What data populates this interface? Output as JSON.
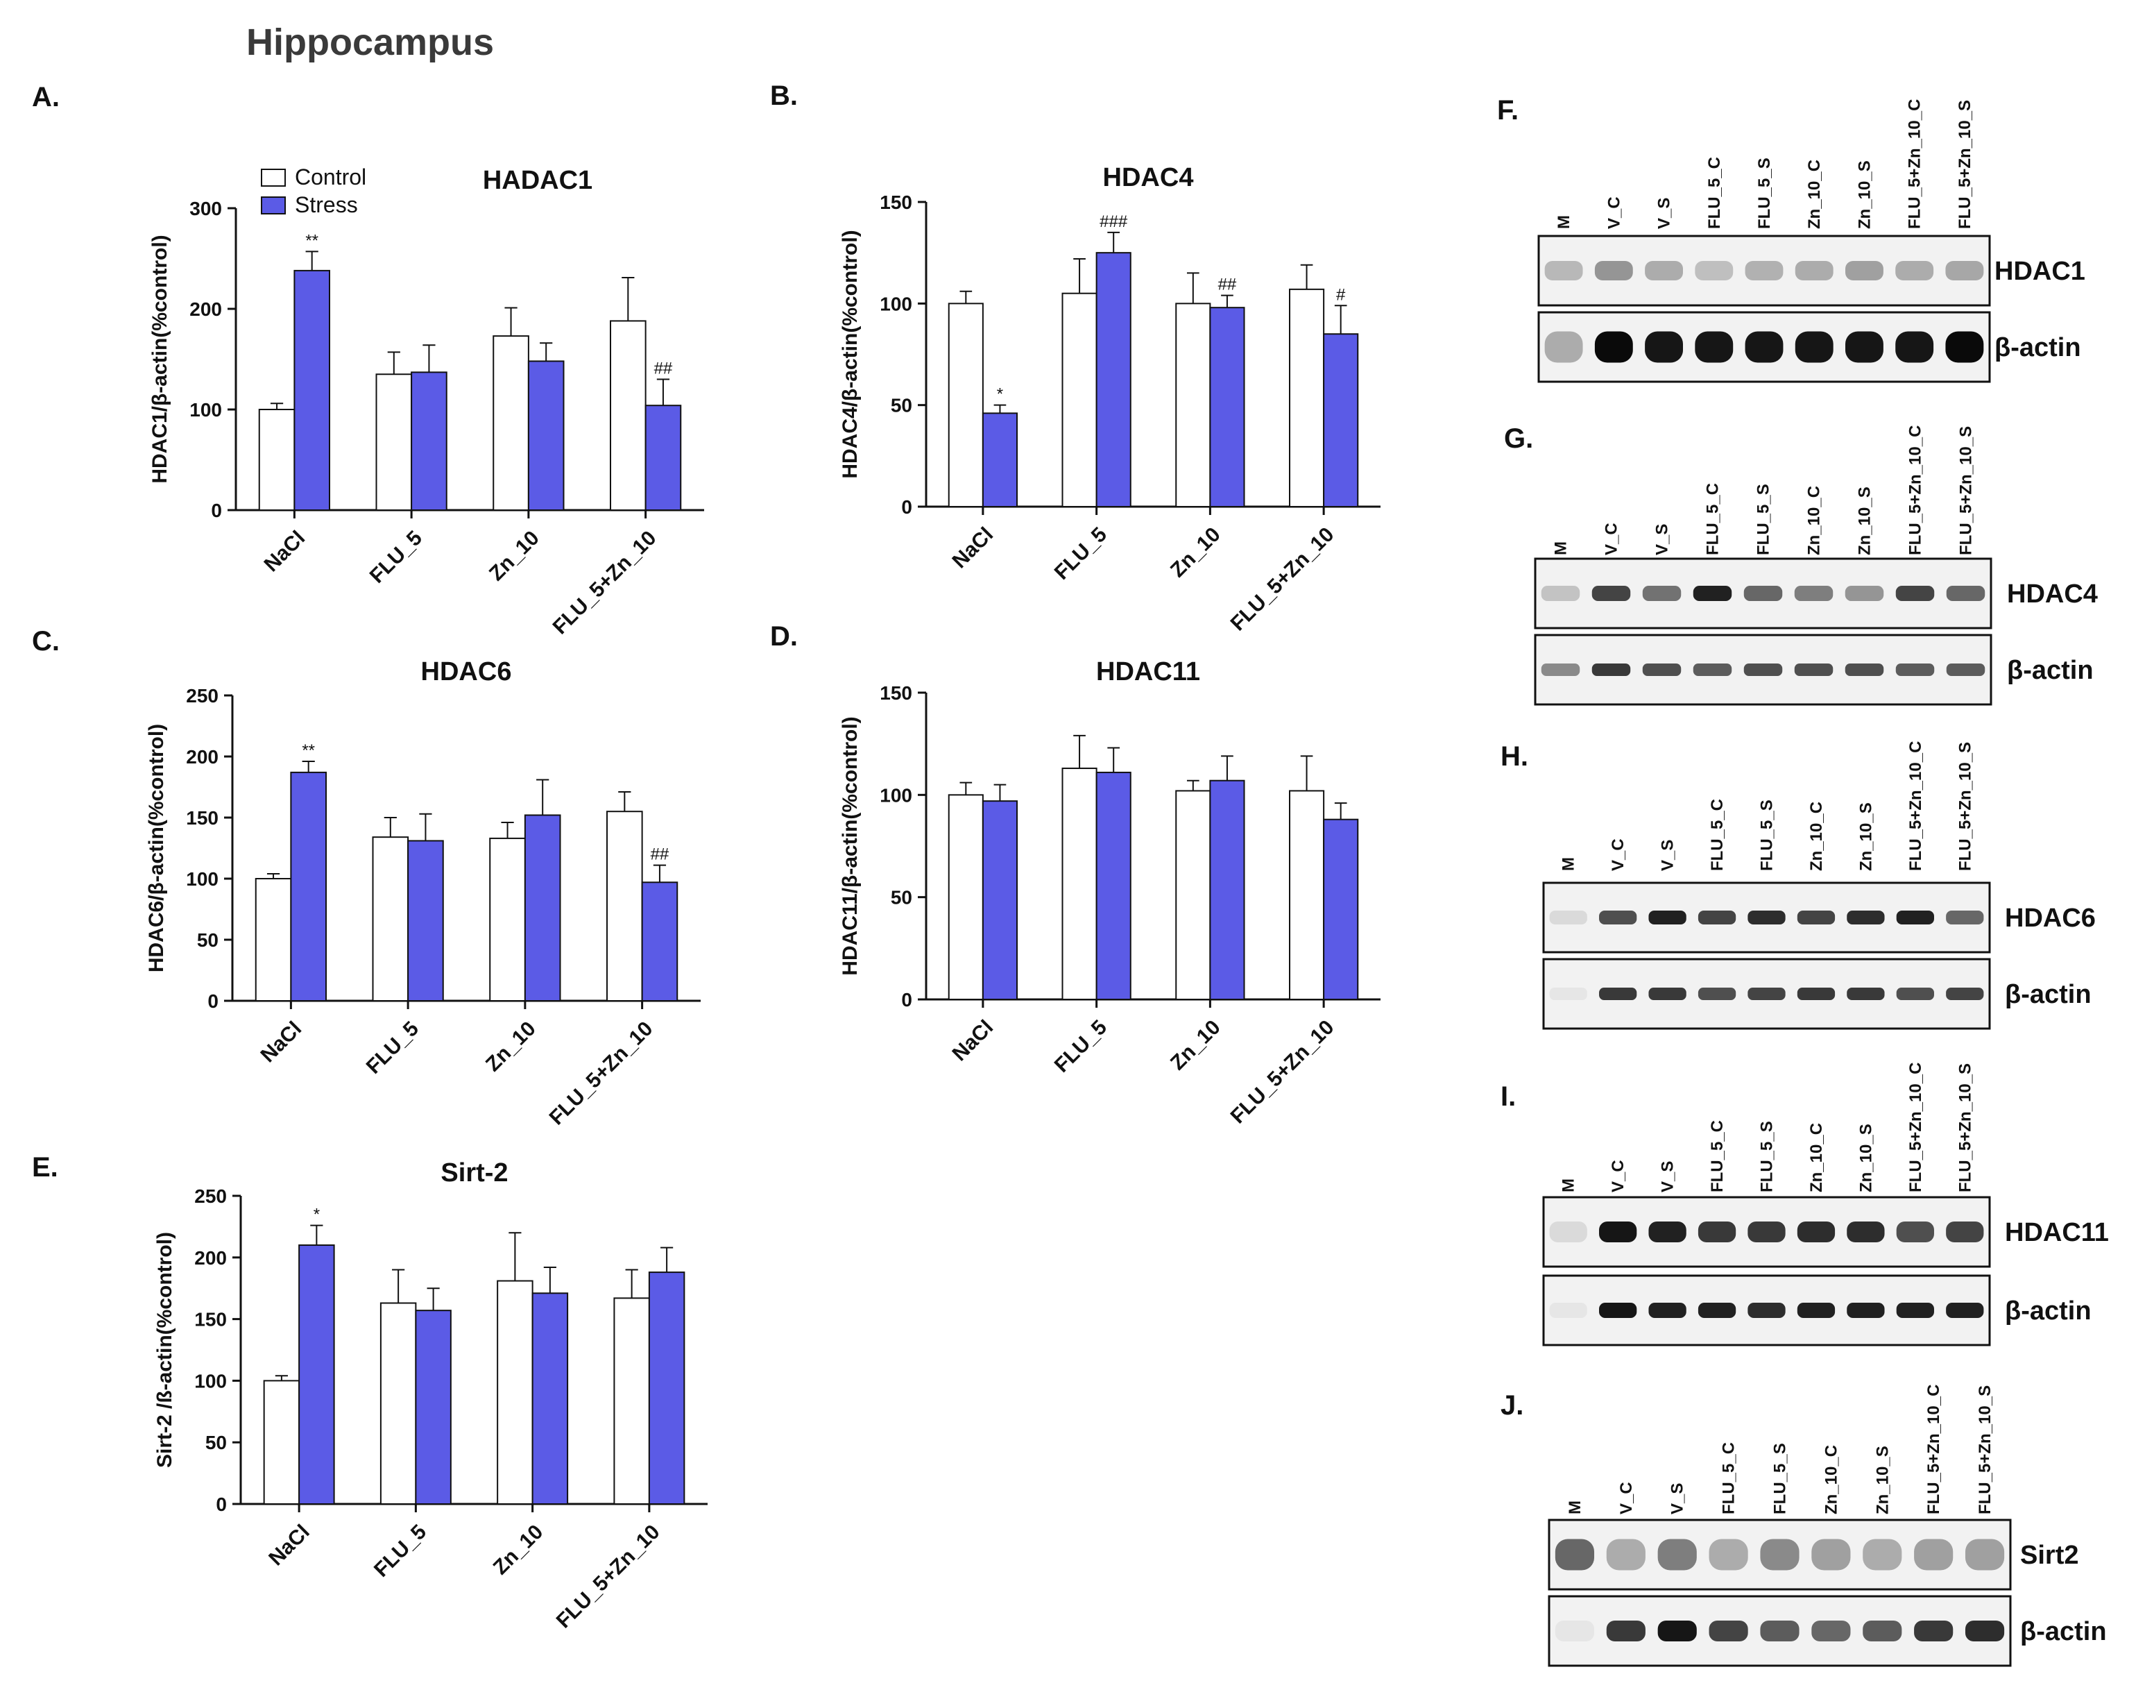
{
  "figure": {
    "title": "Hippocampus",
    "panel_letters": [
      "A.",
      "B.",
      "C.",
      "D.",
      "E.",
      "F.",
      "G.",
      "H.",
      "I.",
      "J."
    ]
  },
  "colors": {
    "control": "#ffffff",
    "stress": "#5b5be6",
    "axis": "#111111",
    "blot_dark": "#0a0a0a"
  },
  "chart_data": [
    {
      "panel": "A.",
      "type": "bar",
      "title": "HADAC1",
      "ylabel": "HDAC1/β-actin(%control)",
      "ylim": [
        0,
        300
      ],
      "yticks": [
        0,
        100,
        200,
        300
      ],
      "categories": [
        "NaCl",
        "FLU_5",
        "Zn_10",
        "FLU_5+Zn_10"
      ],
      "series": [
        {
          "name": "Control",
          "values": [
            100,
            135,
            173,
            188
          ],
          "errors": [
            6,
            22,
            28,
            43
          ]
        },
        {
          "name": "Stress",
          "values": [
            238,
            137,
            148,
            104
          ],
          "errors": [
            19,
            27,
            18,
            26
          ]
        }
      ],
      "annotations": [
        {
          "category": 0,
          "series": 1,
          "text": "**"
        },
        {
          "category": 3,
          "series": 1,
          "text": "##"
        }
      ],
      "legend": {
        "position": "top-left",
        "entries": [
          "Control",
          "Stress"
        ]
      }
    },
    {
      "panel": "B.",
      "type": "bar",
      "title": "HDAC4",
      "ylabel": "HDAC4/β-actin(%control)",
      "ylim": [
        0,
        150
      ],
      "yticks": [
        0,
        50,
        100,
        150
      ],
      "categories": [
        "NaCl",
        "FLU_5",
        "Zn_10",
        "FLU_5+Zn_10"
      ],
      "series": [
        {
          "name": "Control",
          "values": [
            100,
            105,
            100,
            107
          ],
          "errors": [
            6,
            17,
            15,
            12
          ]
        },
        {
          "name": "Stress",
          "values": [
            46,
            125,
            98,
            85
          ],
          "errors": [
            4,
            10,
            6,
            14
          ]
        }
      ],
      "annotations": [
        {
          "category": 0,
          "series": 1,
          "text": "*"
        },
        {
          "category": 1,
          "series": 1,
          "text": "###"
        },
        {
          "category": 2,
          "series": 1,
          "text": "##"
        },
        {
          "category": 3,
          "series": 1,
          "text": "#"
        }
      ]
    },
    {
      "panel": "C.",
      "type": "bar",
      "title": "HDAC6",
      "ylabel": "HDAC6/β-actin(%control)",
      "ylim": [
        0,
        250
      ],
      "yticks": [
        0,
        50,
        100,
        150,
        200,
        250
      ],
      "categories": [
        "NaCl",
        "FLU_5",
        "Zn_10",
        "FLU_5+Zn_10"
      ],
      "series": [
        {
          "name": "Control",
          "values": [
            100,
            134,
            133,
            155
          ],
          "errors": [
            4,
            16,
            13,
            16
          ]
        },
        {
          "name": "Stress",
          "values": [
            187,
            131,
            152,
            97
          ],
          "errors": [
            9,
            22,
            29,
            14
          ]
        }
      ],
      "annotations": [
        {
          "category": 0,
          "series": 1,
          "text": "**"
        },
        {
          "category": 3,
          "series": 1,
          "text": "##"
        }
      ]
    },
    {
      "panel": "D.",
      "type": "bar",
      "title": "HDAC11",
      "ylabel": "HDAC11/β-actin(%control)",
      "ylim": [
        0,
        150
      ],
      "yticks": [
        0,
        50,
        100,
        150
      ],
      "categories": [
        "NaCl",
        "FLU_5",
        "Zn_10",
        "FLU_5+Zn_10"
      ],
      "series": [
        {
          "name": "Control",
          "values": [
            100,
            113,
            102,
            102
          ],
          "errors": [
            6,
            16,
            5,
            17
          ]
        },
        {
          "name": "Stress",
          "values": [
            97,
            111,
            107,
            88
          ],
          "errors": [
            8,
            12,
            12,
            8
          ]
        }
      ],
      "annotations": []
    },
    {
      "panel": "E.",
      "type": "bar",
      "title": "Sirt-2",
      "ylabel": "Sirt-2 /ß-actin(%control)",
      "ylim": [
        0,
        250
      ],
      "yticks": [
        0,
        50,
        100,
        150,
        200,
        250
      ],
      "categories": [
        "NaCl",
        "FLU_5",
        "Zn_10",
        "FLU_5+Zn_10"
      ],
      "series": [
        {
          "name": "Control",
          "values": [
            100,
            163,
            181,
            167
          ],
          "errors": [
            4,
            27,
            39,
            23
          ]
        },
        {
          "name": "Stress",
          "values": [
            210,
            157,
            171,
            188
          ],
          "errors": [
            16,
            18,
            21,
            20
          ]
        }
      ],
      "annotations": [
        {
          "category": 0,
          "series": 1,
          "text": "*"
        }
      ]
    }
  ],
  "blots": [
    {
      "panel": "F.",
      "lanes": [
        "M",
        "V_C",
        "V_S",
        "FLU_5_C",
        "FLU_5_S",
        "Zn_10_C",
        "Zn_10_S",
        "FLU_5+Zn_10_C",
        "FLU_5+Zn_10_S"
      ],
      "rows": [
        {
          "label": "HDAC1",
          "intensities": [
            0.25,
            0.4,
            0.3,
            0.22,
            0.28,
            0.3,
            0.35,
            0.3,
            0.32
          ],
          "band_height": 0.28
        },
        {
          "label": "β-actin",
          "intensities": [
            0.3,
            1,
            0.95,
            0.95,
            0.95,
            0.95,
            0.95,
            0.95,
            1
          ],
          "band_height": 0.45
        }
      ]
    },
    {
      "panel": "G.",
      "lanes": [
        "M",
        "V_C",
        "V_S",
        "FLU_5_C",
        "FLU_5_S",
        "Zn_10_C",
        "Zn_10_S",
        "FLU_5+Zn_10_C",
        "FLU_5+Zn_10_S"
      ],
      "rows": [
        {
          "label": "HDAC4",
          "intensities": [
            0.2,
            0.75,
            0.55,
            0.9,
            0.6,
            0.5,
            0.4,
            0.75,
            0.6
          ],
          "band_height": 0.22
        },
        {
          "label": "β-actin",
          "intensities": [
            0.45,
            0.8,
            0.7,
            0.65,
            0.7,
            0.7,
            0.7,
            0.65,
            0.65
          ],
          "band_height": 0.18
        }
      ]
    },
    {
      "panel": "H.",
      "lanes": [
        "M",
        "V_C",
        "V_S",
        "FLU_5_C",
        "FLU_5_S",
        "Zn_10_C",
        "Zn_10_S",
        "FLU_5+Zn_10_C",
        "FLU_5+Zn_10_S"
      ],
      "rows": [
        {
          "label": "HDAC6",
          "intensities": [
            0.1,
            0.7,
            0.9,
            0.75,
            0.85,
            0.75,
            0.85,
            0.9,
            0.6
          ],
          "band_height": 0.2
        },
        {
          "label": "β-actin",
          "intensities": [
            0.05,
            0.8,
            0.8,
            0.7,
            0.75,
            0.8,
            0.8,
            0.7,
            0.75
          ],
          "band_height": 0.18
        }
      ]
    },
    {
      "panel": "I.",
      "lanes": [
        "M",
        "V_C",
        "V_S",
        "FLU_5_C",
        "FLU_5_S",
        "Zn_10_C",
        "Zn_10_S",
        "FLU_5+Zn_10_C",
        "FLU_5+Zn_10_S"
      ],
      "rows": [
        {
          "label": "HDAC11",
          "intensities": [
            0.1,
            0.95,
            0.9,
            0.8,
            0.8,
            0.85,
            0.85,
            0.7,
            0.75
          ],
          "band_height": 0.3
        },
        {
          "label": "β-actin",
          "intensities": [
            0.05,
            0.95,
            0.9,
            0.9,
            0.85,
            0.9,
            0.9,
            0.9,
            0.9
          ],
          "band_height": 0.22
        }
      ]
    },
    {
      "panel": "J.",
      "lanes": [
        "M",
        "V_C",
        "V_S",
        "FLU_5_C",
        "FLU_5_S",
        "Zn_10_C",
        "Zn_10_S",
        "FLU_5+Zn_10_C",
        "FLU_5+Zn_10_S"
      ],
      "rows": [
        {
          "label": "Sirt2",
          "intensities": [
            0.6,
            0.3,
            0.5,
            0.3,
            0.45,
            0.35,
            0.3,
            0.35,
            0.35
          ],
          "band_height": 0.45
        },
        {
          "label": "β-actin",
          "intensities": [
            0.05,
            0.8,
            0.95,
            0.75,
            0.65,
            0.6,
            0.65,
            0.8,
            0.85
          ],
          "band_height": 0.3
        }
      ]
    }
  ]
}
